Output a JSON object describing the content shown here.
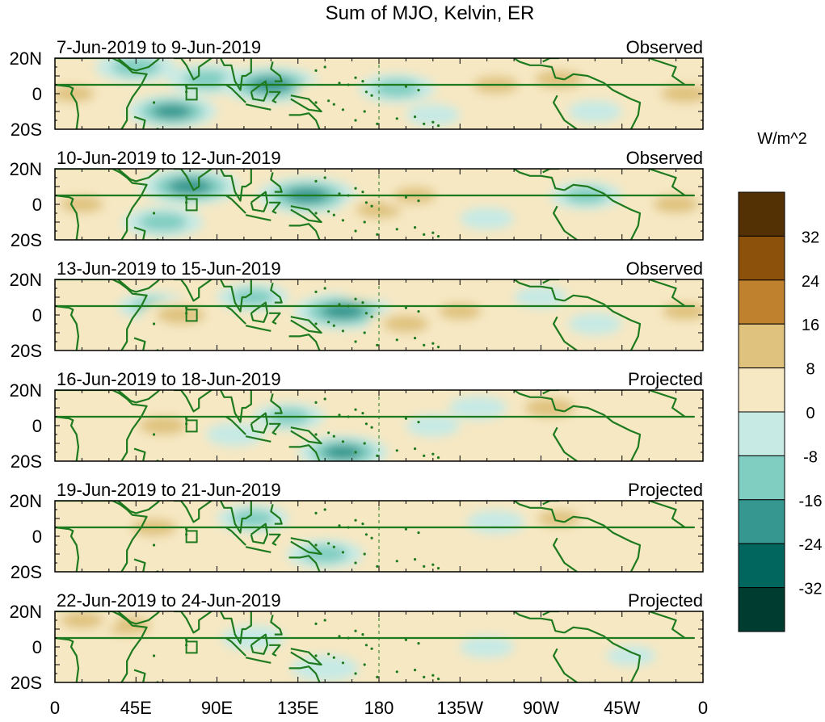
{
  "chart_data": {
    "type": "heatmap",
    "title": "Sum of MJO, Kelvin, ER",
    "colorbar": {
      "units": "W/m^2",
      "levels": [
        32,
        24,
        16,
        8,
        0,
        -8,
        -16,
        -24,
        -32
      ],
      "colors": [
        "#543005",
        "#8c510a",
        "#bf812d",
        "#dfc27d",
        "#f6e8c3",
        "#c7eae5",
        "#80cdc1",
        "#35978f",
        "#01665e",
        "#003c30"
      ]
    },
    "x_ticks": [
      "0",
      "45E",
      "90E",
      "135E",
      "180",
      "135W",
      "90W",
      "45W",
      "0"
    ],
    "y_ticks": [
      "20N",
      "0",
      "20S"
    ],
    "panels": [
      {
        "period": "7-Jun-2019 to 9-Jun-2019",
        "label": "Observed"
      },
      {
        "period": "10-Jun-2019 to 12-Jun-2019",
        "label": "Observed"
      },
      {
        "period": "13-Jun-2019 to 15-Jun-2019",
        "label": "Observed"
      },
      {
        "period": "16-Jun-2019 to 18-Jun-2019",
        "label": "Projected"
      },
      {
        "period": "19-Jun-2019 to 21-Jun-2019",
        "label": "Projected"
      },
      {
        "period": "22-Jun-2019 to 24-Jun-2019",
        "label": "Projected"
      }
    ],
    "features": [
      [
        {
          "lon": 45,
          "lat": 15,
          "v": -20
        },
        {
          "lon": 85,
          "lat": 8,
          "v": -20
        },
        {
          "lon": 120,
          "lat": 5,
          "v": -28
        },
        {
          "lon": 65,
          "lat": -10,
          "v": -24
        },
        {
          "lon": 150,
          "lat": 0,
          "v": 10
        },
        {
          "lon": 190,
          "lat": 3,
          "v": -18
        },
        {
          "lon": 245,
          "lat": 5,
          "v": 18
        },
        {
          "lon": 280,
          "lat": 8,
          "v": 20
        },
        {
          "lon": 310,
          "lat": 5,
          "v": 10
        },
        {
          "lon": 350,
          "lat": 0,
          "v": 20
        },
        {
          "lon": 10,
          "lat": 0,
          "v": 16
        },
        {
          "lon": 300,
          "lat": -10,
          "v": -8
        },
        {
          "lon": 210,
          "lat": -12,
          "v": -8
        }
      ],
      [
        {
          "lon": 75,
          "lat": 10,
          "v": -28
        },
        {
          "lon": 140,
          "lat": 5,
          "v": -28
        },
        {
          "lon": 60,
          "lat": -10,
          "v": -20
        },
        {
          "lon": 180,
          "lat": -3,
          "v": 18
        },
        {
          "lon": 200,
          "lat": 5,
          "v": 16
        },
        {
          "lon": 15,
          "lat": 0,
          "v": 16
        },
        {
          "lon": 345,
          "lat": 0,
          "v": 18
        },
        {
          "lon": 260,
          "lat": 10,
          "v": 8
        },
        {
          "lon": 240,
          "lat": -8,
          "v": -8
        },
        {
          "lon": 295,
          "lat": 5,
          "v": -16
        },
        {
          "lon": 100,
          "lat": -12,
          "v": 10
        }
      ],
      [
        {
          "lon": 55,
          "lat": 5,
          "v": -16
        },
        {
          "lon": 160,
          "lat": 2,
          "v": -28
        },
        {
          "lon": 195,
          "lat": -5,
          "v": 18
        },
        {
          "lon": 70,
          "lat": 0,
          "v": 20
        },
        {
          "lon": 225,
          "lat": 2,
          "v": 16
        },
        {
          "lon": 110,
          "lat": 10,
          "v": -16
        },
        {
          "lon": 350,
          "lat": 2,
          "v": 18
        },
        {
          "lon": 20,
          "lat": -5,
          "v": 10
        },
        {
          "lon": 300,
          "lat": -5,
          "v": -8
        },
        {
          "lon": 175,
          "lat": 15,
          "v": 12
        },
        {
          "lon": 270,
          "lat": 10,
          "v": -8
        }
      ],
      [
        {
          "lon": 60,
          "lat": 0,
          "v": 20
        },
        {
          "lon": 130,
          "lat": 5,
          "v": -16
        },
        {
          "lon": 160,
          "lat": -15,
          "v": -24
        },
        {
          "lon": 275,
          "lat": 10,
          "v": 22
        },
        {
          "lon": 210,
          "lat": 0,
          "v": -8
        },
        {
          "lon": 25,
          "lat": 5,
          "v": 8
        },
        {
          "lon": 100,
          "lat": -5,
          "v": -10
        },
        {
          "lon": 330,
          "lat": 0,
          "v": 8
        },
        {
          "lon": 235,
          "lat": 10,
          "v": -10
        }
      ],
      [
        {
          "lon": 55,
          "lat": 5,
          "v": 18
        },
        {
          "lon": 150,
          "lat": -10,
          "v": -18
        },
        {
          "lon": 110,
          "lat": 10,
          "v": -16
        },
        {
          "lon": 280,
          "lat": 10,
          "v": 16
        },
        {
          "lon": 200,
          "lat": 5,
          "v": 8
        },
        {
          "lon": 245,
          "lat": 8,
          "v": -10
        },
        {
          "lon": 25,
          "lat": 5,
          "v": 8
        },
        {
          "lon": 320,
          "lat": -5,
          "v": 6
        },
        {
          "lon": 235,
          "lat": -10,
          "v": 8
        }
      ],
      [
        {
          "lon": 40,
          "lat": 12,
          "v": 20
        },
        {
          "lon": 110,
          "lat": 5,
          "v": -12
        },
        {
          "lon": 150,
          "lat": -12,
          "v": -14
        },
        {
          "lon": 70,
          "lat": -5,
          "v": 8
        },
        {
          "lon": 15,
          "lat": 15,
          "v": 16
        },
        {
          "lon": 270,
          "lat": 12,
          "v": 10
        },
        {
          "lon": 200,
          "lat": 8,
          "v": 8
        },
        {
          "lon": 240,
          "lat": 0,
          "v": -8
        },
        {
          "lon": 320,
          "lat": -5,
          "v": -6
        }
      ]
    ]
  }
}
